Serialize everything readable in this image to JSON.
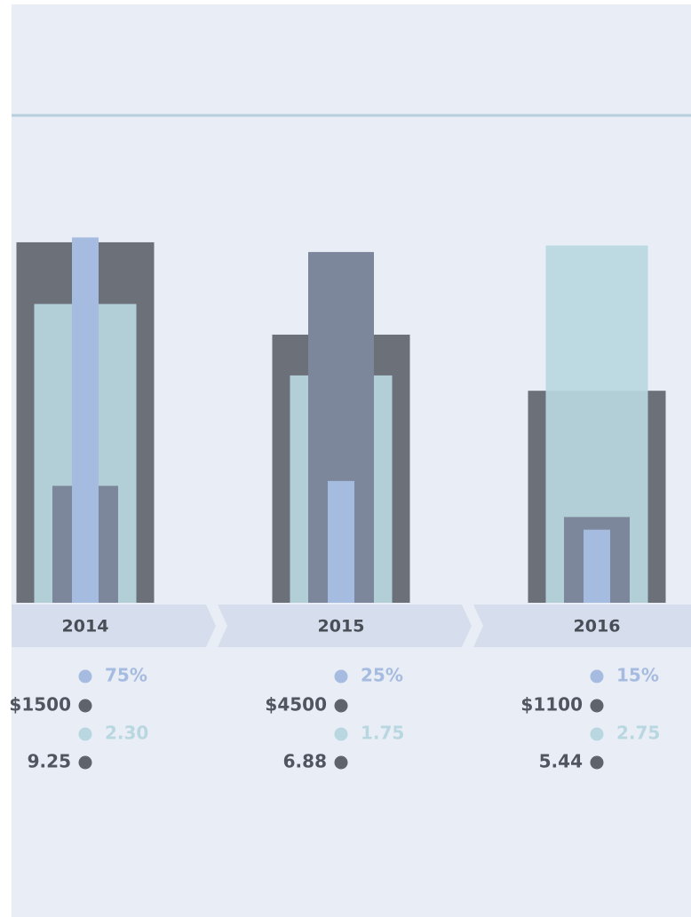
{
  "chart_data": {
    "type": "bar",
    "categories": [
      "2014",
      "2015",
      "2016"
    ],
    "series": [
      {
        "color": "#a6bbe0",
        "values": [
          75,
          25,
          15
        ],
        "value_labels": [
          "75%",
          "25%",
          "15%"
        ],
        "ylim": [
          0,
          80
        ]
      },
      {
        "color": "#7d879b",
        "values": [
          1500,
          4500,
          1100
        ],
        "value_labels": [
          "$1500",
          "$4500",
          "$1100"
        ],
        "ylim": [
          0,
          5000
        ]
      },
      {
        "color": "#b9d7e0",
        "values": [
          2.3,
          1.75,
          2.75
        ],
        "value_labels": [
          "2.30",
          "1.75",
          "2.75"
        ],
        "ylim": [
          0,
          3
        ]
      },
      {
        "color": "#6b7079",
        "values": [
          9.25,
          6.88,
          5.44
        ],
        "ylim": [
          0,
          10
        ]
      }
    ]
  }
}
